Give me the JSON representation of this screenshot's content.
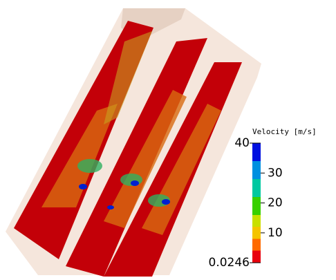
{
  "colorbar": {
    "title": "Velocity [m/s]",
    "range": [
      0.0246,
      40
    ],
    "ticks": [
      10,
      20,
      30
    ]
  }
}
